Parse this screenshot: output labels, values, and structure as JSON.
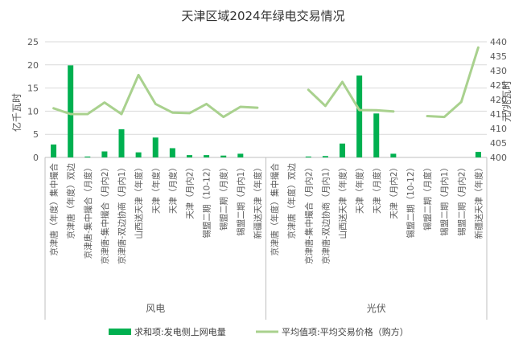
{
  "chart_data": {
    "type": "bar+line",
    "title": "天津区域2024年绿电交易情况",
    "y_left_label": "亿千瓦时",
    "y_right_label": "元/兆瓦时",
    "y_left_range": [
      0,
      25
    ],
    "y_left_ticks": [
      "0",
      "5",
      "10",
      "15",
      "20",
      "25"
    ],
    "y_right_range": [
      400,
      440
    ],
    "y_right_ticks": [
      "400",
      "405",
      "410",
      "415",
      "420",
      "425",
      "430",
      "435",
      "440"
    ],
    "groups": [
      {
        "name": "风电",
        "categories": [
          "京津唐（年度）集中撮合",
          "京津唐（年度）双边",
          "京津唐-集中撮合（月度）",
          "京津唐-集中撮合（月内2）",
          "京津唐-双边协商（月内1）",
          "山西送天津（年度）",
          "天津（年度）",
          "天津（月度）",
          "天津（月内2）",
          "锡盟二期（10-12）",
          "锡盟二期（月度）",
          "锡盟二期（月内1）",
          "新疆送天津（年度）"
        ]
      },
      {
        "name": "光伏",
        "categories": [
          "京津唐（年度）集中撮合",
          "京津唐（年度）双边",
          "京津唐-集中撮合（月内2）",
          "京津唐-双边协商（月内1）",
          "山西送天津（年度）",
          "天津（年度）",
          "天津（月度）",
          "天津（月内2）",
          "锡盟二期（10-12）",
          "锡盟二期（月度）",
          "锡盟二期（月内1）",
          "锡盟二期（月内2）",
          "新疆送天津（年度）"
        ]
      }
    ],
    "series": [
      {
        "name": "求和项:发电侧上网电量",
        "type": "bar",
        "axis": "left",
        "color": "#00b050",
        "values": [
          2.8,
          19.9,
          0.2,
          1.3,
          6.1,
          1.1,
          4.3,
          2.0,
          0.5,
          0.5,
          0.4,
          0.8,
          0,
          0,
          0,
          0.2,
          0.3,
          3.0,
          17.7,
          9.5,
          0.8,
          0,
          0,
          0,
          0,
          1.2
        ]
      },
      {
        "name": "平均值项:平均交易价格（购方）",
        "type": "line",
        "axis": "right",
        "color": "#a9d18e",
        "values": [
          417,
          415,
          415,
          419,
          415,
          428.5,
          418.5,
          415.5,
          415.3,
          418.5,
          414,
          417.5,
          417.2,
          null,
          null,
          423.4,
          417.8,
          426.1,
          416.4,
          416.3,
          415.9,
          null,
          414.3,
          414,
          419.2,
          438
        ]
      }
    ]
  }
}
